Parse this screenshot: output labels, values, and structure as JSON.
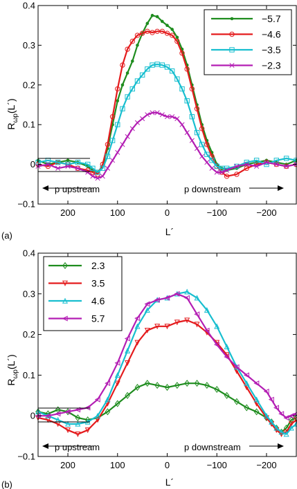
{
  "panel_labels": [
    "(a)",
    "(b)"
  ],
  "chart_data": [
    {
      "type": "line",
      "panel_label": "(a)",
      "xlabel": "L´",
      "ylabel": "Rωp(L´)",
      "ylabel_main": "R",
      "ylabel_sub": "ωp",
      "ylabel_arg": "(L´)",
      "xlim": [
        260,
        -260
      ],
      "ylim": [
        -0.1,
        0.4
      ],
      "x_ticks": [
        200,
        100,
        0,
        -100,
        -200
      ],
      "y_ticks": [
        -0.1,
        0,
        0.1,
        0.2,
        0.3,
        0.4
      ],
      "x_tick_labels": [
        "200",
        "100",
        "0",
        "−100",
        "−200"
      ],
      "y_tick_labels": [
        "−0.1",
        "0",
        "0.1",
        "0.2",
        "0.3",
        "0.4"
      ],
      "legend_position": "top-right",
      "annotations": [
        {
          "text": "p upstream",
          "direction": "left"
        },
        {
          "text": "p downstream",
          "direction": "right"
        }
      ],
      "series": [
        {
          "name": "−5.7",
          "color": "#1e8c1e",
          "marker": "dot",
          "x": [
            260,
            240,
            220,
            200,
            180,
            160,
            150,
            140,
            130,
            120,
            110,
            100,
            90,
            80,
            70,
            60,
            50,
            40,
            30,
            20,
            10,
            0,
            -10,
            -20,
            -30,
            -40,
            -50,
            -60,
            -70,
            -80,
            -90,
            -100,
            -110,
            -120,
            -140,
            -160,
            -180,
            -200,
            -220,
            -240,
            -260
          ],
          "values": [
            0.01,
            0.0,
            0.005,
            0.01,
            0.005,
            -0.005,
            -0.015,
            -0.02,
            -0.005,
            0.04,
            0.1,
            0.16,
            0.2,
            0.23,
            0.26,
            0.3,
            0.33,
            0.355,
            0.375,
            0.372,
            0.36,
            0.35,
            0.34,
            0.32,
            0.29,
            0.25,
            0.2,
            0.15,
            0.1,
            0.06,
            0.03,
            0.0,
            -0.01,
            -0.015,
            -0.01,
            0.0,
            0.005,
            0.01,
            0.005,
            0.0,
            0.01
          ]
        },
        {
          "name": "−4.6",
          "color": "#e41a1c",
          "marker": "circle",
          "x": [
            260,
            240,
            220,
            200,
            180,
            160,
            150,
            140,
            130,
            120,
            110,
            100,
            90,
            80,
            70,
            60,
            50,
            40,
            30,
            20,
            10,
            0,
            -10,
            -20,
            -30,
            -40,
            -50,
            -60,
            -70,
            -80,
            -90,
            -100,
            -110,
            -120,
            -140,
            -160,
            -180,
            -200,
            -220,
            -240,
            -260
          ],
          "values": [
            0.0,
            -0.005,
            0.005,
            0.0,
            -0.01,
            -0.015,
            -0.02,
            -0.025,
            0.0,
            0.05,
            0.12,
            0.19,
            0.25,
            0.29,
            0.31,
            0.325,
            0.33,
            0.335,
            0.332,
            0.335,
            0.335,
            0.33,
            0.325,
            0.31,
            0.28,
            0.24,
            0.19,
            0.14,
            0.09,
            0.05,
            0.02,
            -0.005,
            -0.02,
            -0.03,
            -0.025,
            -0.01,
            0.0,
            0.005,
            0.0,
            -0.005,
            0.0
          ]
        },
        {
          "name": "−3.5",
          "color": "#17becf",
          "marker": "square",
          "x": [
            260,
            240,
            220,
            200,
            180,
            160,
            150,
            140,
            130,
            120,
            110,
            100,
            90,
            80,
            70,
            60,
            50,
            40,
            30,
            20,
            10,
            0,
            -10,
            -20,
            -30,
            -40,
            -50,
            -60,
            -70,
            -80,
            -90,
            -100,
            -110,
            -120,
            -140,
            -160,
            -180,
            -200,
            -220,
            -240,
            -260
          ],
          "values": [
            0.005,
            0.01,
            0.005,
            0.0,
            0.005,
            0.0,
            -0.01,
            -0.02,
            -0.01,
            0.02,
            0.06,
            0.1,
            0.14,
            0.17,
            0.19,
            0.21,
            0.225,
            0.24,
            0.25,
            0.252,
            0.25,
            0.245,
            0.235,
            0.215,
            0.19,
            0.16,
            0.12,
            0.08,
            0.05,
            0.025,
            0.01,
            -0.005,
            -0.01,
            -0.01,
            -0.005,
            0.005,
            0.01,
            0.0,
            0.01,
            0.015,
            0.01
          ]
        },
        {
          "name": "−2.3",
          "color": "#b31db3",
          "marker": "x",
          "x": [
            260,
            240,
            220,
            200,
            180,
            160,
            150,
            140,
            130,
            120,
            110,
            100,
            90,
            80,
            70,
            60,
            50,
            40,
            30,
            20,
            10,
            0,
            -10,
            -20,
            -30,
            -40,
            -50,
            -60,
            -70,
            -80,
            -90,
            -100,
            -110,
            -120,
            -140,
            -160,
            -180,
            -200,
            -220,
            -240,
            -260
          ],
          "values": [
            -0.005,
            0.0,
            -0.01,
            -0.005,
            -0.01,
            -0.02,
            -0.03,
            -0.035,
            -0.03,
            -0.01,
            0.01,
            0.03,
            0.05,
            0.07,
            0.09,
            0.105,
            0.115,
            0.125,
            0.13,
            0.13,
            0.125,
            0.12,
            0.12,
            0.115,
            0.1,
            0.08,
            0.06,
            0.04,
            0.02,
            0.005,
            -0.01,
            -0.02,
            -0.02,
            -0.015,
            -0.005,
            0.0,
            -0.005,
            0.005,
            0.0,
            -0.005,
            0.0
          ]
        }
      ]
    },
    {
      "type": "line",
      "panel_label": "(b)",
      "xlabel": "L´",
      "ylabel": "Rωp(L´)",
      "ylabel_main": "R",
      "ylabel_sub": "ωp",
      "ylabel_arg": "(L´)",
      "xlim": [
        260,
        -260
      ],
      "ylim": [
        -0.1,
        0.4
      ],
      "x_ticks": [
        200,
        100,
        0,
        -100,
        -200
      ],
      "y_ticks": [
        -0.1,
        0,
        0.1,
        0.2,
        0.3,
        0.4
      ],
      "x_tick_labels": [
        "200",
        "100",
        "0",
        "−100",
        "−200"
      ],
      "y_tick_labels": [
        "−0.1",
        "0",
        "0.1",
        "0.2",
        "0.3",
        "0.4"
      ],
      "legend_position": "top-left",
      "annotations": [
        {
          "text": "p upstream",
          "direction": "left"
        },
        {
          "text": "p downstream",
          "direction": "right"
        }
      ],
      "series": [
        {
          "name": "2.3",
          "color": "#1e8c1e",
          "marker": "diamond",
          "x": [
            260,
            240,
            220,
            200,
            180,
            160,
            140,
            120,
            100,
            80,
            60,
            40,
            20,
            0,
            -20,
            -40,
            -60,
            -80,
            -100,
            -120,
            -140,
            -160,
            -180,
            -200,
            -210,
            -220,
            -230,
            -240,
            -250,
            -260
          ],
          "values": [
            0.01,
            0.005,
            0.015,
            0.01,
            -0.005,
            -0.01,
            -0.005,
            0.01,
            0.03,
            0.05,
            0.07,
            0.08,
            0.075,
            0.07,
            0.075,
            0.08,
            0.08,
            0.075,
            0.065,
            0.05,
            0.035,
            0.02,
            0.01,
            -0.005,
            -0.015,
            -0.03,
            -0.04,
            -0.03,
            -0.01,
            -0.005
          ]
        },
        {
          "name": "3.5",
          "color": "#e41a1c",
          "marker": "triangle-down",
          "x": [
            260,
            240,
            220,
            200,
            180,
            160,
            140,
            120,
            100,
            80,
            60,
            40,
            20,
            0,
            -20,
            -40,
            -60,
            -80,
            -100,
            -120,
            -140,
            -160,
            -180,
            -200,
            -210,
            -220,
            -230,
            -240,
            -250,
            -260
          ],
          "values": [
            -0.005,
            -0.01,
            -0.02,
            -0.035,
            -0.045,
            -0.035,
            -0.01,
            0.03,
            0.08,
            0.13,
            0.18,
            0.21,
            0.22,
            0.22,
            0.23,
            0.235,
            0.225,
            0.205,
            0.18,
            0.15,
            0.11,
            0.07,
            0.03,
            -0.005,
            -0.02,
            -0.035,
            -0.045,
            -0.04,
            -0.02,
            -0.01
          ]
        },
        {
          "name": "4.6",
          "color": "#17becf",
          "marker": "triangle-up",
          "x": [
            260,
            240,
            220,
            200,
            180,
            160,
            140,
            120,
            100,
            80,
            60,
            40,
            20,
            0,
            -20,
            -40,
            -60,
            -80,
            -100,
            -120,
            -140,
            -160,
            -180,
            -200,
            -210,
            -220,
            -230,
            -240,
            -250,
            -260
          ],
          "values": [
            0.01,
            0.0,
            -0.01,
            -0.02,
            -0.02,
            -0.015,
            0.0,
            0.04,
            0.1,
            0.16,
            0.22,
            0.26,
            0.285,
            0.29,
            0.3,
            0.305,
            0.29,
            0.26,
            0.22,
            0.17,
            0.12,
            0.08,
            0.04,
            0.0,
            -0.015,
            -0.03,
            -0.04,
            -0.045,
            -0.03,
            -0.02
          ]
        },
        {
          "name": "5.7",
          "color": "#b31db3",
          "marker": "triangle-left",
          "x": [
            260,
            240,
            220,
            200,
            180,
            160,
            140,
            120,
            100,
            80,
            60,
            40,
            20,
            0,
            -20,
            -40,
            -60,
            -80,
            -100,
            -120,
            -140,
            -160,
            -180,
            -200,
            -210,
            -220,
            -230,
            -240,
            -250,
            -260
          ],
          "values": [
            0.0,
            0.0,
            0.005,
            0.01,
            0.015,
            0.02,
            0.04,
            0.08,
            0.13,
            0.19,
            0.24,
            0.275,
            0.285,
            0.29,
            0.3,
            0.29,
            0.25,
            0.21,
            0.175,
            0.145,
            0.12,
            0.1,
            0.08,
            0.06,
            0.04,
            0.02,
            0.005,
            -0.005,
            0.0,
            0.005
          ]
        }
      ]
    }
  ]
}
